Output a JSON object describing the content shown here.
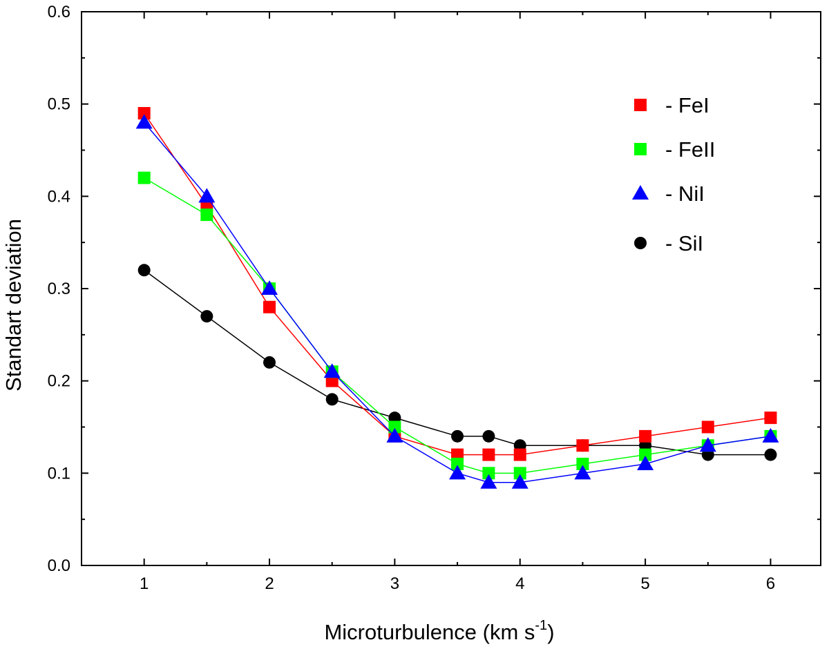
{
  "chart_data": {
    "type": "line",
    "title": "",
    "xlabel": "Microturbulence (km s",
    "xlabel_sup": "-1",
    "xlabel_suffix": ")",
    "ylabel": "Standart deviation",
    "xlim": [
      0.5,
      6.4
    ],
    "ylim": [
      0.0,
      0.6
    ],
    "grid": false,
    "legend_position": "top-right",
    "x_ticks": [
      1,
      2,
      3,
      4,
      5,
      6
    ],
    "x_tick_labels": [
      "1",
      "2",
      "3",
      "4",
      "5",
      "6"
    ],
    "y_ticks": [
      0.0,
      0.1,
      0.2,
      0.3,
      0.4,
      0.5,
      0.6
    ],
    "y_tick_labels": [
      "0.0",
      "0.1",
      "0.2",
      "0.3",
      "0.4",
      "0.5",
      "0.6"
    ],
    "x": [
      1,
      1.5,
      2,
      2.5,
      3,
      3.5,
      3.75,
      4,
      4.5,
      5,
      5.5,
      6
    ],
    "series": [
      {
        "name": "FeI",
        "legend_label": "- FeI",
        "marker": "square",
        "color": "#ff0000",
        "values": [
          0.49,
          0.39,
          0.28,
          0.2,
          0.14,
          0.12,
          0.12,
          0.12,
          0.13,
          0.14,
          0.15,
          0.16
        ]
      },
      {
        "name": "FeII",
        "legend_label": "- FeII",
        "marker": "square",
        "color": "#00ff00",
        "values": [
          0.42,
          0.38,
          0.3,
          0.21,
          0.15,
          0.11,
          0.1,
          0.1,
          0.11,
          0.12,
          0.13,
          0.14
        ]
      },
      {
        "name": "NiI",
        "legend_label": "- NiI",
        "marker": "triangle",
        "color": "#0000ff",
        "values": [
          0.48,
          0.4,
          0.3,
          0.21,
          0.14,
          0.1,
          0.09,
          0.09,
          0.1,
          0.11,
          0.13,
          0.14
        ]
      },
      {
        "name": "SiI",
        "legend_label": "- SiI",
        "marker": "circle",
        "color": "#000000",
        "values": [
          0.32,
          0.27,
          0.22,
          0.18,
          0.16,
          0.14,
          0.14,
          0.13,
          0.13,
          0.13,
          0.12,
          0.12
        ]
      }
    ]
  }
}
